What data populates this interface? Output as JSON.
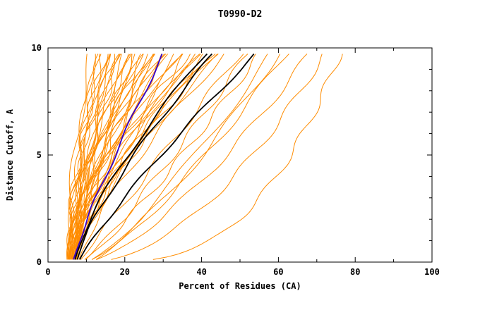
{
  "chart_data": {
    "type": "line",
    "title": "T0990-D2",
    "xlabel": "Percent of Residues (CA)",
    "ylabel": "Distance Cutoff, A",
    "xlim": [
      0,
      100
    ],
    "ylim": [
      0,
      10
    ],
    "x_major_ticks": [
      0,
      20,
      40,
      60,
      80,
      100
    ],
    "y_major_ticks": [
      0,
      5,
      10
    ],
    "x_minor_step": 10,
    "y_minor_step": 1,
    "grid": false,
    "legend": "none",
    "y_start": 0.12,
    "y_end": 9.72,
    "colors": {
      "background_models": "#ff8c00",
      "reference_models": "#000000",
      "highlight_model": "#3300cc"
    },
    "series_groups": [
      {
        "name": "orange-model",
        "color": "#ff8c00",
        "width": 1,
        "wiggle": 0.9,
        "curves": [
          [
            5,
            11,
            1.6
          ],
          [
            5.5,
            12,
            1.5
          ],
          [
            6,
            13,
            1.7
          ],
          [
            5,
            13.5,
            1.4
          ],
          [
            6.5,
            14,
            1.6
          ],
          [
            5.2,
            15,
            1.8
          ],
          [
            6,
            15.5,
            1.5
          ],
          [
            7,
            16,
            1.4
          ],
          [
            5.8,
            17,
            1.7
          ],
          [
            6.3,
            17.5,
            1.5
          ],
          [
            5,
            18,
            1.9
          ],
          [
            6.8,
            18.5,
            1.4
          ],
          [
            7.2,
            19,
            1.6
          ],
          [
            5.5,
            20,
            1.5
          ],
          [
            6,
            20.5,
            1.8
          ],
          [
            7,
            21,
            1.3
          ],
          [
            5.3,
            22,
            1.6
          ],
          [
            6.6,
            22.5,
            1.5
          ],
          [
            7.4,
            23,
            1.7
          ],
          [
            5.9,
            24,
            1.4
          ],
          [
            6.2,
            24.5,
            1.6
          ],
          [
            7,
            25,
            1.5
          ],
          [
            5.6,
            26,
            1.8
          ],
          [
            6.9,
            26.5,
            1.3
          ],
          [
            7.5,
            27,
            1.6
          ],
          [
            6,
            28,
            1.5
          ],
          [
            6.4,
            28.5,
            1.7
          ],
          [
            7.1,
            29,
            1.4
          ],
          [
            5.7,
            30,
            1.6
          ],
          [
            6.8,
            31,
            1.5
          ],
          [
            7.3,
            32,
            1.7
          ],
          [
            6.1,
            33,
            1.4
          ],
          [
            6.5,
            34,
            1.6
          ],
          [
            7,
            35,
            1.5
          ],
          [
            7.6,
            36,
            1.3
          ],
          [
            6.3,
            37,
            1.6
          ],
          [
            6.9,
            38,
            1.4
          ],
          [
            7.4,
            39,
            1.5
          ],
          [
            6.6,
            40,
            1.6
          ],
          [
            7.2,
            41,
            1.4
          ],
          [
            7.8,
            42,
            1.5
          ],
          [
            6.7,
            43,
            1.3
          ],
          [
            7,
            44,
            1.5
          ],
          [
            7.5,
            45,
            1.4
          ],
          [
            8,
            46,
            1.3
          ],
          [
            8,
            50,
            1.0
          ],
          [
            9,
            52,
            0.9
          ],
          [
            8.5,
            55,
            0.85
          ],
          [
            10,
            58,
            0.8
          ],
          [
            9.5,
            60,
            0.75
          ],
          [
            11,
            62,
            0.8
          ],
          [
            10,
            68,
            0.7
          ],
          [
            11,
            72,
            0.55
          ],
          [
            14,
            76,
            0.35
          ]
        ]
      },
      {
        "name": "black-model",
        "color": "#000000",
        "width": 1.8,
        "wiggle": 0.5,
        "curves": [
          [
            7,
            41,
            1.35
          ],
          [
            7.5,
            43,
            1.3
          ],
          [
            8,
            54,
            1.15
          ]
        ]
      },
      {
        "name": "blue-model",
        "color": "#3300cc",
        "width": 1.8,
        "wiggle": 0.4,
        "curves": [
          [
            6.5,
            30,
            1.15
          ]
        ]
      }
    ]
  }
}
